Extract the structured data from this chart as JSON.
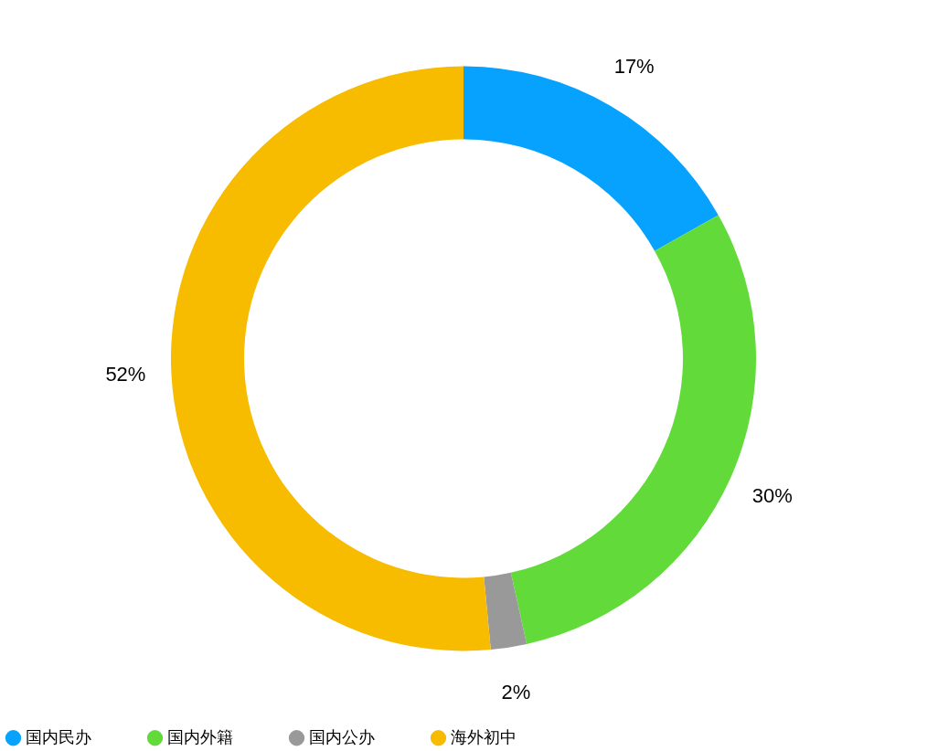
{
  "chart_data": {
    "type": "donut",
    "categories": [
      "国内民办",
      "国内外籍",
      "国内公办",
      "海外初中"
    ],
    "values": [
      17,
      30,
      2,
      52
    ],
    "colors": [
      "#06a2fd",
      "#62db3a",
      "#999999",
      "#f7bb00"
    ],
    "value_labels": [
      "17%",
      "30%",
      "2%",
      "52%"
    ],
    "legend": "bottom"
  }
}
